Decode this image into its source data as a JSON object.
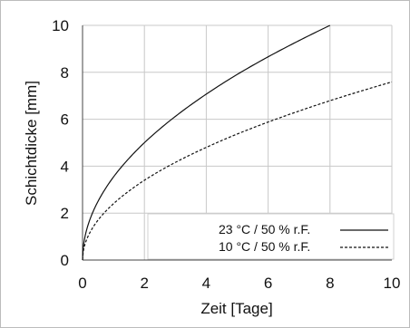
{
  "chart_data": {
    "type": "line",
    "title": "",
    "xlabel": "Zeit [Tage]",
    "ylabel": "Schichtdicke [mm]",
    "xlim": [
      0,
      10
    ],
    "ylim": [
      0,
      10
    ],
    "xticks": [
      "0",
      "2",
      "4",
      "6",
      "8",
      "10"
    ],
    "yticks": [
      "0",
      "2",
      "4",
      "6",
      "8",
      "10"
    ],
    "grid": true,
    "legend_position": "bottom-right",
    "series": [
      {
        "name": "23 °C / 50 %  r.F.",
        "style": "solid",
        "color": "#111111",
        "x": [
          0,
          0.25,
          0.5,
          1,
          1.5,
          2,
          3,
          4,
          5,
          6,
          7,
          8
        ],
        "y": [
          0,
          1.77,
          2.5,
          3.54,
          4.33,
          5.0,
          6.12,
          7.07,
          7.91,
          8.66,
          9.35,
          10.0
        ]
      },
      {
        "name": "10 °C / 50 %  r.F.",
        "style": "dashed",
        "color": "#111111",
        "x": [
          0,
          0.25,
          0.5,
          1,
          1.5,
          2,
          3,
          4,
          5,
          6,
          7,
          8,
          9,
          10
        ],
        "y": [
          0,
          1.2,
          1.7,
          2.4,
          2.94,
          3.4,
          4.16,
          4.8,
          5.37,
          5.88,
          6.35,
          6.79,
          7.2,
          7.59
        ]
      }
    ]
  }
}
